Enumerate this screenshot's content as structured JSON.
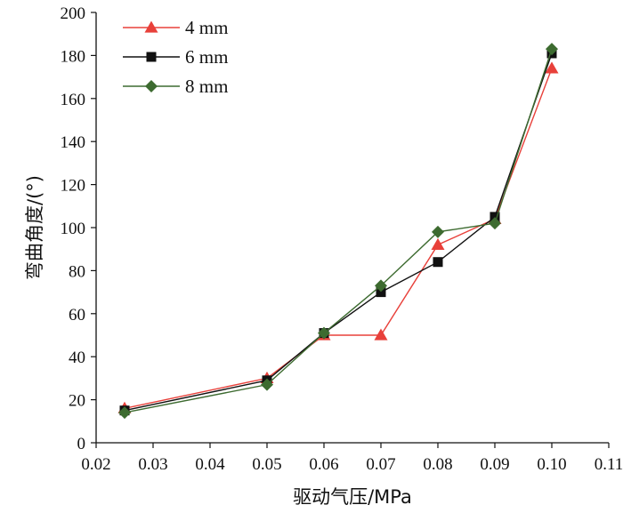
{
  "chart_data": {
    "type": "line",
    "xlabel": "驱动气压/MPa",
    "ylabel": "弯曲角度/(°)",
    "xlim": [
      0.02,
      0.11
    ],
    "ylim": [
      0,
      200
    ],
    "x_ticks": [
      "0.02",
      "0.03",
      "0.04",
      "0.05",
      "0.06",
      "0.07",
      "0.08",
      "0.09",
      "0.10",
      "0.11"
    ],
    "y_ticks": [
      "0",
      "20",
      "40",
      "60",
      "80",
      "100",
      "120",
      "140",
      "160",
      "180",
      "200"
    ],
    "legend_position": "top-left",
    "grid": false,
    "series": [
      {
        "name": "4 mm",
        "color": "#e8403a",
        "marker": "triangle",
        "points": [
          [
            0.025,
            16
          ],
          [
            0.05,
            30
          ],
          [
            0.06,
            50
          ],
          [
            0.07,
            50
          ],
          [
            0.08,
            92
          ],
          [
            0.09,
            104
          ],
          [
            0.1,
            174
          ]
        ]
      },
      {
        "name": "6 mm",
        "color": "#111111",
        "marker": "square",
        "points": [
          [
            0.025,
            15
          ],
          [
            0.05,
            29
          ],
          [
            0.06,
            51
          ],
          [
            0.07,
            70
          ],
          [
            0.08,
            84
          ],
          [
            0.09,
            105
          ],
          [
            0.1,
            181
          ]
        ]
      },
      {
        "name": "8 mm",
        "color": "#3d6b30",
        "marker": "diamond",
        "points": [
          [
            0.025,
            14
          ],
          [
            0.05,
            27
          ],
          [
            0.06,
            51
          ],
          [
            0.07,
            73
          ],
          [
            0.08,
            98
          ],
          [
            0.09,
            102
          ],
          [
            0.1,
            183
          ]
        ]
      }
    ]
  }
}
